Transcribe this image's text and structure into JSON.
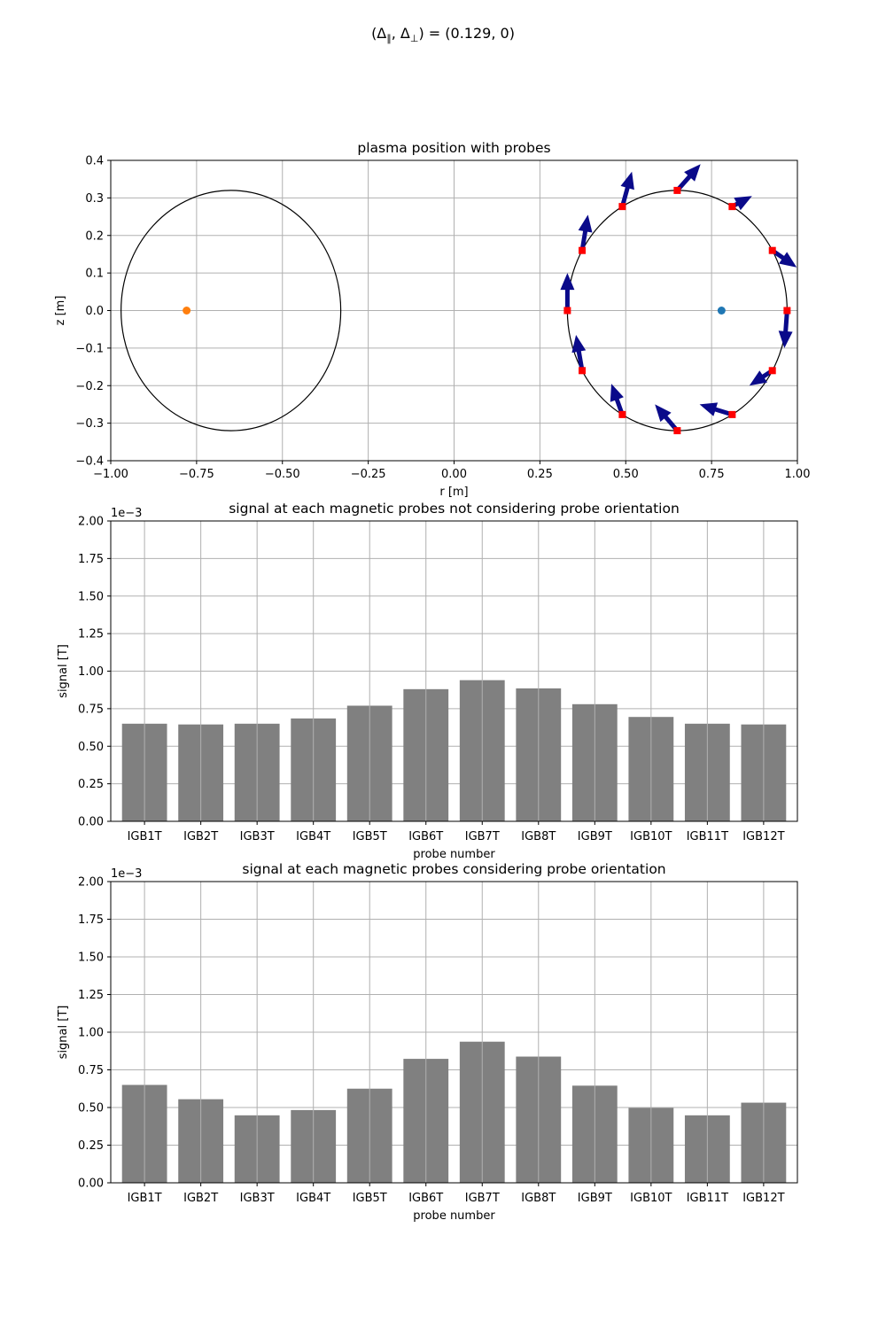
{
  "figure": {
    "suptitle": {
      "open": "(Δ",
      "sub1": "∥",
      "mid": ", Δ",
      "sub2": "⊥",
      "close": ") = (0.129, 0)"
    }
  },
  "colors": {
    "bar": "#808080",
    "arrow": "#0a0a8a",
    "probe_marker": "#ff0000",
    "center_left": "#ff7f0e",
    "center_right": "#1f77b4",
    "grid": "#b0b0b0"
  },
  "chart_data": [
    {
      "type": "scatter",
      "title": "plasma position with probes",
      "xlabel": "r [m]",
      "ylabel": "z [m]",
      "xlim": [
        -1.0,
        1.0
      ],
      "ylim": [
        -0.4,
        0.4
      ],
      "xticks": [
        -1.0,
        -0.75,
        -0.5,
        -0.25,
        0.0,
        0.25,
        0.5,
        0.75,
        1.0
      ],
      "xtick_labels": [
        "−1.00",
        "−0.75",
        "−0.50",
        "−0.25",
        "0.00",
        "0.25",
        "0.50",
        "0.75",
        "1.00"
      ],
      "yticks": [
        -0.4,
        -0.3,
        -0.2,
        -0.1,
        0.0,
        0.1,
        0.2,
        0.3,
        0.4
      ],
      "ytick_labels": [
        "−0.4",
        "−0.3",
        "−0.2",
        "−0.1",
        "0.0",
        "0.1",
        "0.2",
        "0.3",
        "0.4"
      ],
      "grid": true,
      "vessels": [
        {
          "r0": -0.65,
          "z0": 0.0,
          "a": 0.32
        },
        {
          "r0": 0.65,
          "z0": 0.0,
          "a": 0.32
        }
      ],
      "centers": [
        {
          "r": -0.779,
          "z": 0.0,
          "color": "#ff7f0e"
        },
        {
          "r": 0.779,
          "z": 0.0,
          "color": "#1f77b4"
        }
      ],
      "probes": {
        "r": [
          0.97,
          0.927,
          0.81,
          0.65,
          0.49,
          0.373,
          0.33,
          0.373,
          0.49,
          0.65,
          0.81,
          0.927
        ],
        "z": [
          0.0,
          0.16,
          0.277,
          0.32,
          0.277,
          0.16,
          0.0,
          -0.16,
          -0.277,
          -0.32,
          -0.277,
          -0.16
        ],
        "arrow_tip_r": [
          0.962,
          0.998,
          0.868,
          0.718,
          0.518,
          0.39,
          0.33,
          0.355,
          0.458,
          0.585,
          0.715,
          0.86
        ],
        "arrow_tip_z": [
          -0.1,
          0.115,
          0.305,
          0.39,
          0.37,
          0.255,
          0.1,
          -0.065,
          -0.195,
          -0.25,
          -0.25,
          -0.2
        ]
      }
    },
    {
      "type": "bar",
      "title": "signal at each magnetic probes not considering probe orientation",
      "xlabel": "probe number",
      "ylabel": "signal [T]",
      "offset_label": "1e−3",
      "ylim": [
        0,
        0.002
      ],
      "yticks": [
        0,
        0.00025,
        0.0005,
        0.00075,
        0.001,
        0.00125,
        0.0015,
        0.00175,
        0.002
      ],
      "ytick_labels": [
        "0.00",
        "0.25",
        "0.50",
        "0.75",
        "1.00",
        "1.25",
        "1.50",
        "1.75",
        "2.00"
      ],
      "categories": [
        "IGB1T",
        "IGB2T",
        "IGB3T",
        "IGB4T",
        "IGB5T",
        "IGB6T",
        "IGB7T",
        "IGB8T",
        "IGB9T",
        "IGB10T",
        "IGB11T",
        "IGB12T"
      ],
      "values": [
        0.00065,
        0.000645,
        0.00065,
        0.000685,
        0.00077,
        0.00088,
        0.00094,
        0.000885,
        0.00078,
        0.000695,
        0.00065,
        0.000645
      ],
      "grid": true
    },
    {
      "type": "bar",
      "title": "signal at each magnetic probes considering probe orientation",
      "xlabel": "probe number",
      "ylabel": "signal [T]",
      "offset_label": "1e−3",
      "ylim": [
        0,
        0.002
      ],
      "yticks": [
        0,
        0.00025,
        0.0005,
        0.00075,
        0.001,
        0.00125,
        0.0015,
        0.00175,
        0.002
      ],
      "ytick_labels": [
        "0.00",
        "0.25",
        "0.50",
        "0.75",
        "1.00",
        "1.25",
        "1.50",
        "1.75",
        "2.00"
      ],
      "categories": [
        "IGB1T",
        "IGB2T",
        "IGB3T",
        "IGB4T",
        "IGB5T",
        "IGB6T",
        "IGB7T",
        "IGB8T",
        "IGB9T",
        "IGB10T",
        "IGB11T",
        "IGB12T"
      ],
      "values": [
        0.00065,
        0.000555,
        0.000448,
        0.000483,
        0.000625,
        0.000823,
        0.000937,
        0.000838,
        0.000645,
        0.000497,
        0.000448,
        0.000532
      ],
      "grid": true
    }
  ]
}
